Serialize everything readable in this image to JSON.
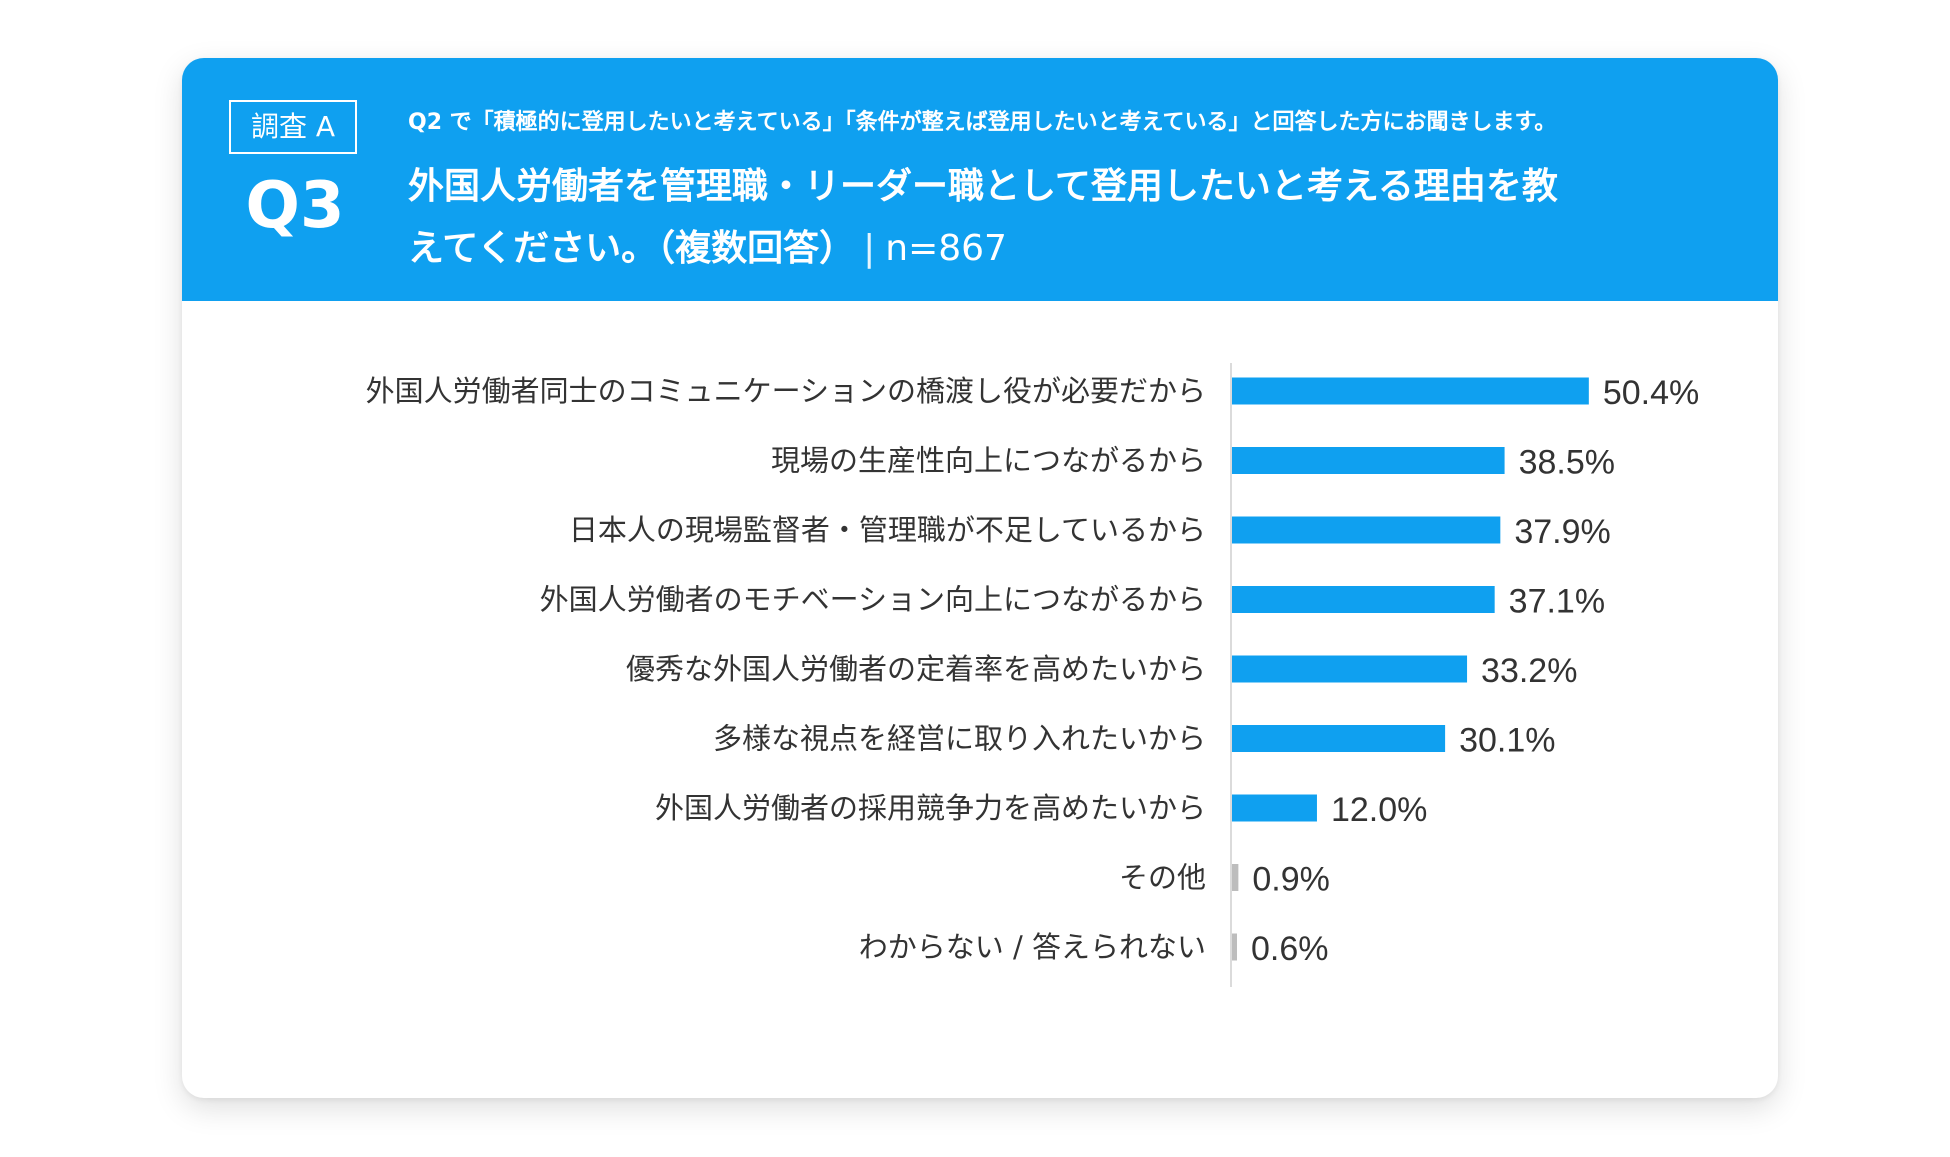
{
  "header": {
    "survey_label": "調査 A",
    "question_number": "Q3",
    "note": "Q2 で「積極的に登用したいと考えている」「条件が整えば登用したいと考えている」と回答した方にお聞きします。",
    "title": "外国人労働者を管理職・リーダー職として登用したいと考える理由を教えてください。（複数回答）",
    "separator": "|",
    "sample_size": "n=867"
  },
  "colors": {
    "header_bg": "#0fa0f0",
    "bar": "#0fa0f0",
    "bar_minor": "#bdbdbd",
    "text": "#333333"
  },
  "chart_data": {
    "type": "bar",
    "orientation": "horizontal",
    "title": "外国人労働者を管理職・リーダー職として登用したいと考える理由を教えてください。（複数回答）",
    "categories": [
      "外国人労働者同士のコミュニケーションの橋渡し役が必要だから",
      "現場の生産性向上につながるから",
      "日本人の現場監督者・管理職が不足しているから",
      "外国人労働者のモチベーション向上につながるから",
      "優秀な外国人労働者の定着率を高めたいから",
      "多様な視点を経営に取り入れたいから",
      "外国人労働者の採用競争力を高めたいから",
      "その他",
      "わからない / 答えられない"
    ],
    "values": [
      50.4,
      38.5,
      37.9,
      37.1,
      33.2,
      30.1,
      12.0,
      0.9,
      0.6
    ],
    "value_labels": [
      "50.4%",
      "38.5%",
      "37.9%",
      "37.1%",
      "33.2%",
      "30.1%",
      "12.0%",
      "0.9%",
      "0.6%"
    ],
    "highlight_colors": [
      "#0fa0f0",
      "#0fa0f0",
      "#0fa0f0",
      "#0fa0f0",
      "#0fa0f0",
      "#0fa0f0",
      "#0fa0f0",
      "#bdbdbd",
      "#bdbdbd"
    ],
    "unit": "%",
    "xlim": [
      0,
      100
    ],
    "grid": false,
    "legend": "none"
  }
}
